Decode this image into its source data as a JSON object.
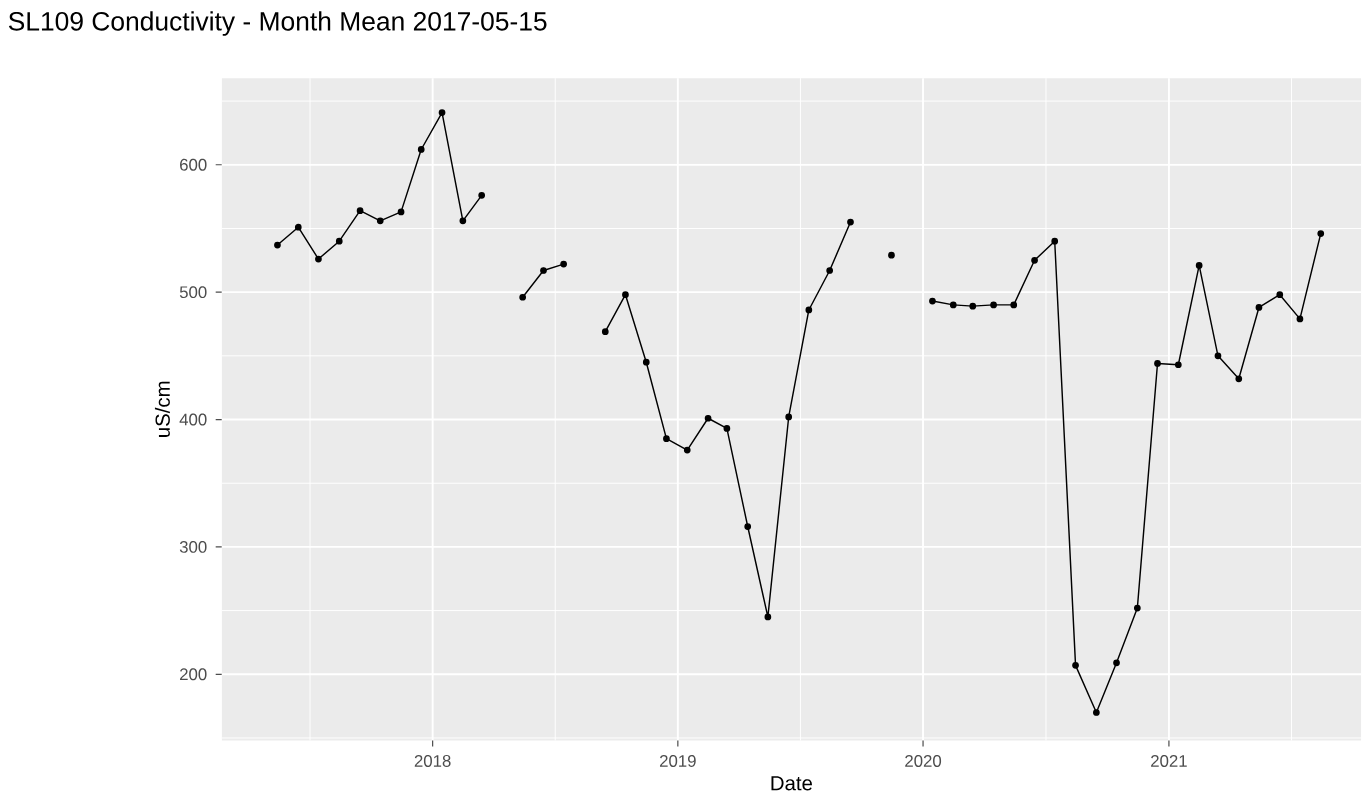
{
  "chart_data": {
    "type": "line",
    "title": "SL109 Conductivity - Month Mean 2017-05-15",
    "xlabel": "Date",
    "ylabel": "uS/cm",
    "x": [
      "2017-05-15",
      "2017-06-15",
      "2017-07-15",
      "2017-08-15",
      "2017-09-15",
      "2017-10-15",
      "2017-11-15",
      "2017-12-15",
      "2018-01-15",
      "2018-02-15",
      "2018-03-15",
      "2018-04-15",
      "2018-05-15",
      "2018-06-15",
      "2018-07-15",
      "2018-08-15",
      "2018-09-15",
      "2018-10-15",
      "2018-11-15",
      "2018-12-15",
      "2019-01-15",
      "2019-02-15",
      "2019-03-15",
      "2019-04-15",
      "2019-05-15",
      "2019-06-15",
      "2019-07-15",
      "2019-08-15",
      "2019-09-15",
      "2019-10-15",
      "2019-11-15",
      "2019-12-15",
      "2020-01-15",
      "2020-02-15",
      "2020-03-15",
      "2020-04-15",
      "2020-05-15",
      "2020-06-15",
      "2020-07-15",
      "2020-08-15",
      "2020-09-15",
      "2020-10-15",
      "2020-11-15",
      "2020-12-15",
      "2021-01-15",
      "2021-02-15",
      "2021-03-15",
      "2021-04-15",
      "2021-05-15",
      "2021-06-15",
      "2021-07-15",
      "2021-08-15"
    ],
    "series": [
      {
        "color": "#000000",
        "values": [
          537,
          551,
          526,
          540,
          564,
          556,
          563,
          612,
          641,
          556,
          576,
          null,
          496,
          517,
          522,
          null,
          469,
          498,
          445,
          385,
          376,
          401,
          393,
          316,
          245,
          402,
          486,
          517,
          555,
          null,
          529,
          null,
          493,
          490,
          489,
          490,
          490,
          525,
          540,
          207,
          170,
          209,
          252,
          444,
          443,
          521,
          450,
          432,
          488,
          498,
          479,
          546
        ]
      }
    ],
    "xlim": [
      "2017-02-21",
      "2021-10-14"
    ],
    "xticks": [
      "2018",
      "2019",
      "2020",
      "2021"
    ],
    "ylim": [
      148,
      668
    ],
    "yticks": [
      200,
      300,
      400,
      500,
      600
    ],
    "grid": true,
    "marker": "circle",
    "line_style": "solid"
  }
}
